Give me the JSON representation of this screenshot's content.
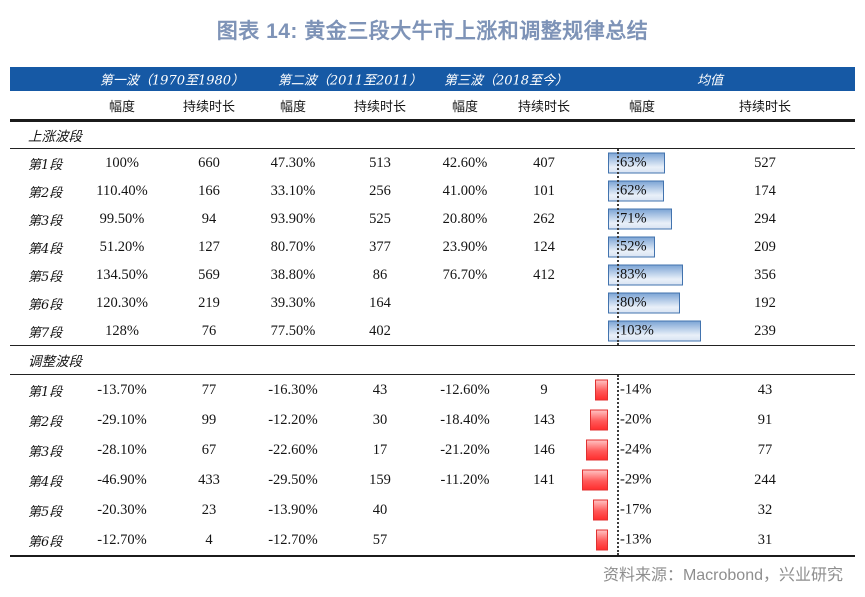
{
  "page": {
    "title": "图表 14: 黄金三段大牛市上涨和调整规律总结",
    "source_note": "资料来源：Macrobond，兴业研究"
  },
  "colors": {
    "title_text": "#7E93B7",
    "header_band": "#1659A5",
    "bar_blue_border": "#4273AE",
    "bar_blue_fill_top": "#7FA6D6",
    "bar_red_border": "#E03030",
    "bar_red_fill": "#FF2F2F",
    "source_text": "#8E8E8E"
  },
  "chart_data": {
    "type": "table",
    "title": "图表 14: 黄金三段大牛市上涨和调整规律总结",
    "column_groups": [
      "第一波（1970至1980）",
      "第二波（2011至2011）",
      "第三波（2018至今）",
      "均值"
    ],
    "sub_columns": [
      "幅度",
      "持续时长"
    ],
    "databar_note": "均值幅度列带数据条：上涨段为蓝色右向条，调整段为红色左向条，虚线为零轴",
    "sections": [
      {
        "label": "上涨波段",
        "rows": [
          {
            "label": "第1段",
            "w1_amp": "100%",
            "w1_dur": "660",
            "w2_amp": "47.30%",
            "w2_dur": "513",
            "w3_amp": "42.60%",
            "w3_dur": "407",
            "avg_amp": "63%",
            "avg_amp_value": 63,
            "avg_dur": "527"
          },
          {
            "label": "第2段",
            "w1_amp": "110.40%",
            "w1_dur": "166",
            "w2_amp": "33.10%",
            "w2_dur": "256",
            "w3_amp": "41.00%",
            "w3_dur": "101",
            "avg_amp": "62%",
            "avg_amp_value": 62,
            "avg_dur": "174"
          },
          {
            "label": "第3段",
            "w1_amp": "99.50%",
            "w1_dur": "94",
            "w2_amp": "93.90%",
            "w2_dur": "525",
            "w3_amp": "20.80%",
            "w3_dur": "262",
            "avg_amp": "71%",
            "avg_amp_value": 71,
            "avg_dur": "294"
          },
          {
            "label": "第4段",
            "w1_amp": "51.20%",
            "w1_dur": "127",
            "w2_amp": "80.70%",
            "w2_dur": "377",
            "w3_amp": "23.90%",
            "w3_dur": "124",
            "avg_amp": "52%",
            "avg_amp_value": 52,
            "avg_dur": "209"
          },
          {
            "label": "第5段",
            "w1_amp": "134.50%",
            "w1_dur": "569",
            "w2_amp": "38.80%",
            "w2_dur": "86",
            "w3_amp": "76.70%",
            "w3_dur": "412",
            "avg_amp": "83%",
            "avg_amp_value": 83,
            "avg_dur": "356"
          },
          {
            "label": "第6段",
            "w1_amp": "120.30%",
            "w1_dur": "219",
            "w2_amp": "39.30%",
            "w2_dur": "164",
            "w3_amp": "",
            "w3_dur": "",
            "avg_amp": "80%",
            "avg_amp_value": 80,
            "avg_dur": "192"
          },
          {
            "label": "第7段",
            "w1_amp": "128%",
            "w1_dur": "76",
            "w2_amp": "77.50%",
            "w2_dur": "402",
            "w3_amp": "",
            "w3_dur": "",
            "avg_amp": "103%",
            "avg_amp_value": 103,
            "avg_dur": "239"
          }
        ]
      },
      {
        "label": "调整波段",
        "rows": [
          {
            "label": "第1段",
            "w1_amp": "-13.70%",
            "w1_dur": "77",
            "w2_amp": "-16.30%",
            "w2_dur": "43",
            "w3_amp": "-12.60%",
            "w3_dur": "9",
            "avg_amp": "-14%",
            "avg_amp_value": -14,
            "avg_dur": "43"
          },
          {
            "label": "第2段",
            "w1_amp": "-29.10%",
            "w1_dur": "99",
            "w2_amp": "-12.20%",
            "w2_dur": "30",
            "w3_amp": "-18.40%",
            "w3_dur": "143",
            "avg_amp": "-20%",
            "avg_amp_value": -20,
            "avg_dur": "91"
          },
          {
            "label": "第3段",
            "w1_amp": "-28.10%",
            "w1_dur": "67",
            "w2_amp": "-22.60%",
            "w2_dur": "17",
            "w3_amp": "-21.20%",
            "w3_dur": "146",
            "avg_amp": "-24%",
            "avg_amp_value": -24,
            "avg_dur": "77"
          },
          {
            "label": "第4段",
            "w1_amp": "-46.90%",
            "w1_dur": "433",
            "w2_amp": "-29.50%",
            "w2_dur": "159",
            "w3_amp": "-11.20%",
            "w3_dur": "141",
            "avg_amp": "-29%",
            "avg_amp_value": -29,
            "avg_dur": "244"
          },
          {
            "label": "第5段",
            "w1_amp": "-20.30%",
            "w1_dur": "23",
            "w2_amp": "-13.90%",
            "w2_dur": "40",
            "w3_amp": "",
            "w3_dur": "",
            "avg_amp": "-17%",
            "avg_amp_value": -17,
            "avg_dur": "32"
          },
          {
            "label": "第6段",
            "w1_amp": "-12.70%",
            "w1_dur": "4",
            "w2_amp": "-12.70%",
            "w2_dur": "57",
            "w3_amp": "",
            "w3_dur": "",
            "avg_amp": "-13%",
            "avg_amp_value": -13,
            "avg_dur": "31"
          }
        ]
      }
    ],
    "source": "资料来源：Macrobond，兴业研究"
  }
}
